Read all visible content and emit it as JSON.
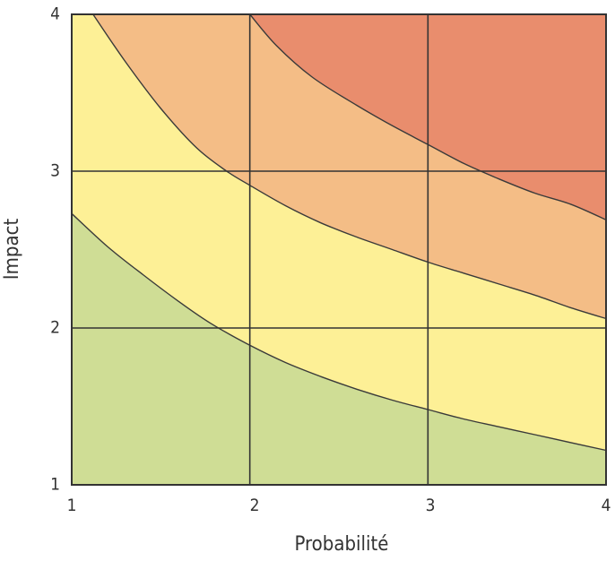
{
  "chart_data": {
    "type": "area",
    "title": "",
    "xlabel": "Probabilité",
    "ylabel": "Impact",
    "xlim": [
      1,
      4
    ],
    "ylim": [
      1,
      4
    ],
    "x_ticks": [
      "1",
      "2",
      "3",
      "4"
    ],
    "y_ticks": [
      "1",
      "2",
      "3",
      "4"
    ],
    "grid": true,
    "legend": "none",
    "zones": [
      {
        "color": "#cfdd95"
      },
      {
        "color": "#fdf096"
      },
      {
        "color": "#f4bd86"
      },
      {
        "color": "#e98d6d"
      }
    ],
    "boundaries": [
      {
        "x": [
          1,
          1.2,
          1.4,
          1.6,
          1.78,
          2,
          2.2,
          2.4,
          2.6,
          2.8,
          3,
          3.2,
          3.4,
          3.6,
          3.8,
          4
        ],
        "y": [
          2.73,
          2.52,
          2.34,
          2.17,
          2.03,
          1.89,
          1.78,
          1.69,
          1.61,
          1.54,
          1.48,
          1.42,
          1.37,
          1.32,
          1.27,
          1.22
        ]
      },
      {
        "x": [
          1.12,
          1.3,
          1.5,
          1.7,
          1.87,
          2,
          2.2,
          2.4,
          2.6,
          2.8,
          3,
          3.2,
          3.4,
          3.6,
          3.8,
          4
        ],
        "y": [
          4,
          3.7,
          3.4,
          3.15,
          3.0,
          2.91,
          2.78,
          2.67,
          2.58,
          2.5,
          2.42,
          2.35,
          2.28,
          2.21,
          2.13,
          2.06
        ]
      },
      {
        "x": [
          2,
          2.15,
          2.35,
          2.6,
          2.8,
          3,
          3.2,
          3.4,
          3.6,
          3.8,
          4
        ],
        "y": [
          4,
          3.8,
          3.6,
          3.42,
          3.29,
          3.17,
          3.05,
          2.95,
          2.86,
          2.79,
          2.69
        ]
      }
    ]
  }
}
